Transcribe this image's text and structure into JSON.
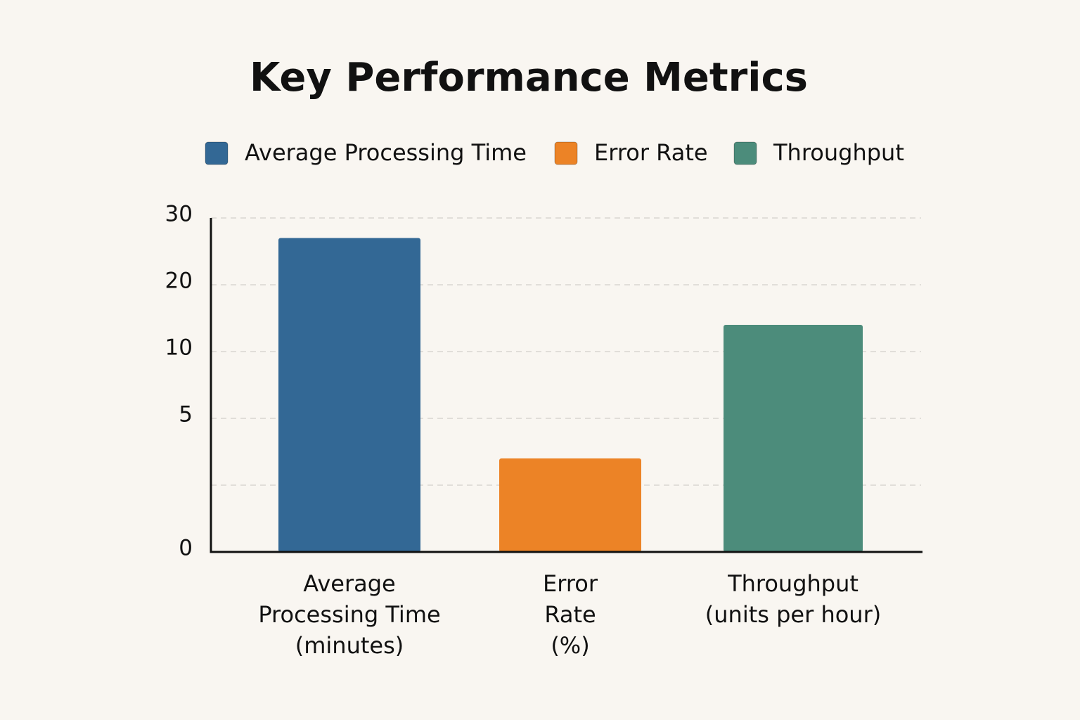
{
  "chart_data": {
    "type": "bar",
    "title": "Key Performance Metrics",
    "legend": [
      "Average Processing Time",
      "Error Rate",
      "Throughput"
    ],
    "categories": [
      "Average\nProcessing Time\n(minutes)",
      "Error\nRate\n(%)",
      "Throughput\n(units per hour)"
    ],
    "values": [
      27,
      3.5,
      14
    ],
    "colors": [
      "#336895",
      "#ec8326",
      "#4c8c7b"
    ],
    "yscale": "piecewise",
    "ylim": [
      0,
      30
    ],
    "yticks": [
      0,
      {
        "value": 2.5,
        "label": null
      },
      5,
      10,
      20,
      30
    ],
    "grid": true
  }
}
